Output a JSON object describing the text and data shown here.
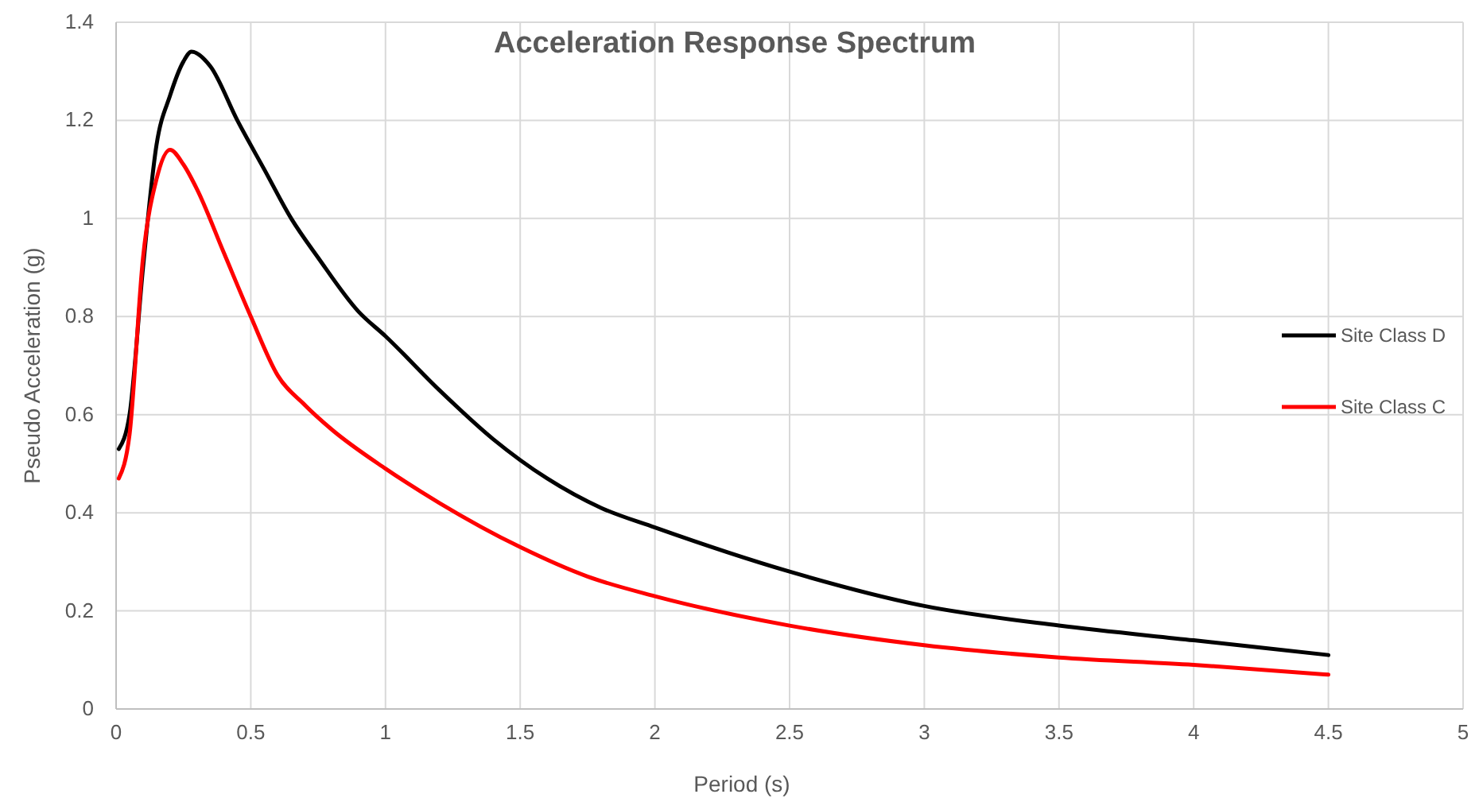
{
  "chart_data": {
    "type": "line",
    "title": "Acceleration Response Spectrum",
    "xlabel": "Period (s)",
    "ylabel": "Pseudo Acceleration (g)",
    "xlim": [
      0,
      5
    ],
    "xticks": [
      0,
      0.5,
      1,
      1.5,
      2,
      2.5,
      3,
      3.5,
      4,
      4.5,
      5
    ],
    "ylim": [
      0,
      1.4
    ],
    "yticks": [
      0,
      0.2,
      0.4,
      0.6,
      0.8,
      1,
      1.2,
      1.4
    ],
    "grid": true,
    "legend": "right",
    "marker": "none",
    "line_style": "solid",
    "series": [
      {
        "name": "Site Class D",
        "color": "#000000",
        "x": [
          0.01,
          0.05,
          0.1,
          0.15,
          0.2,
          0.25,
          0.28,
          0.35,
          0.45,
          0.55,
          0.65,
          0.75,
          0.9,
          1.0,
          1.2,
          1.4,
          1.6,
          1.8,
          2.0,
          2.5,
          3.0,
          3.5,
          4.0,
          4.5
        ],
        "values": [
          0.53,
          0.6,
          0.9,
          1.15,
          1.25,
          1.32,
          1.34,
          1.31,
          1.2,
          1.1,
          1.0,
          0.92,
          0.81,
          0.76,
          0.65,
          0.55,
          0.47,
          0.41,
          0.37,
          0.28,
          0.21,
          0.17,
          0.14,
          0.11
        ]
      },
      {
        "name": "Site Class C",
        "color": "#ff0000",
        "x": [
          0.01,
          0.05,
          0.1,
          0.15,
          0.2,
          0.25,
          0.3,
          0.4,
          0.5,
          0.6,
          0.7,
          0.8,
          1.0,
          1.2,
          1.5,
          1.75,
          2.0,
          2.5,
          3.0,
          3.5,
          4.0,
          4.5
        ],
        "values": [
          0.47,
          0.56,
          0.92,
          1.08,
          1.14,
          1.11,
          1.06,
          0.93,
          0.8,
          0.68,
          0.62,
          0.57,
          0.49,
          0.42,
          0.33,
          0.27,
          0.23,
          0.17,
          0.13,
          0.105,
          0.09,
          0.07
        ]
      }
    ]
  }
}
